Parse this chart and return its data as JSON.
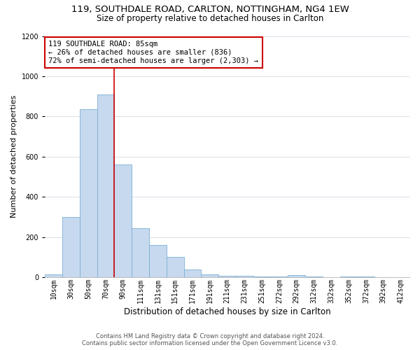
{
  "title_line1": "119, SOUTHDALE ROAD, CARLTON, NOTTINGHAM, NG4 1EW",
  "title_line2": "Size of property relative to detached houses in Carlton",
  "xlabel": "Distribution of detached houses by size in Carlton",
  "ylabel": "Number of detached properties",
  "bar_color": "#c6d9ee",
  "bar_edge_color": "#7bafd4",
  "annotation_line_color": "#cc0000",
  "annotation_box_color": "#cc0000",
  "annotation_text_line1": "119 SOUTHDALE ROAD: 85sqm",
  "annotation_text_line2": "← 26% of detached houses are smaller (836)",
  "annotation_text_line3": "72% of semi-detached houses are larger (2,303) →",
  "categories": [
    "10sqm",
    "30sqm",
    "50sqm",
    "70sqm",
    "90sqm",
    "111sqm",
    "131sqm",
    "151sqm",
    "171sqm",
    "191sqm",
    "211sqm",
    "231sqm",
    "251sqm",
    "272sqm",
    "292sqm",
    "312sqm",
    "332sqm",
    "352sqm",
    "372sqm",
    "392sqm",
    "412sqm"
  ],
  "values": [
    15,
    300,
    835,
    910,
    560,
    245,
    160,
    100,
    37,
    15,
    8,
    5,
    3,
    2,
    10,
    2,
    1,
    2,
    2,
    1,
    1
  ],
  "ylim": [
    0,
    1200
  ],
  "yticks": [
    0,
    200,
    400,
    600,
    800,
    1000,
    1200
  ],
  "footer_line1": "Contains HM Land Registry data © Crown copyright and database right 2024.",
  "footer_line2": "Contains public sector information licensed under the Open Government Licence v3.0.",
  "bg_color": "#ffffff",
  "grid_color": "#d5dfe8",
  "title_fontsize": 9.5,
  "subtitle_fontsize": 8.5,
  "ylabel_fontsize": 8,
  "xlabel_fontsize": 8.5,
  "tick_fontsize": 7,
  "annotation_fontsize": 7.5,
  "footer_fontsize": 6
}
